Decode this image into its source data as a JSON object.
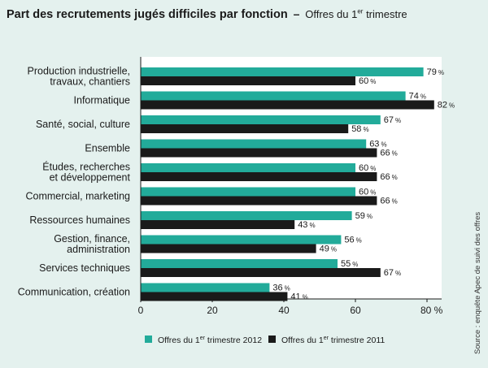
{
  "header": {
    "title": "Part des recrutements jugés difficiles par fonction",
    "dash": "–",
    "subtitle_prefix": "Offres du 1",
    "subtitle_sup": "er",
    "subtitle_suffix": " trimestre"
  },
  "source": "Source : enquête Apec de suivi des offres",
  "colors": {
    "series_2012": "#22ab9a",
    "series_2011": "#1a1a1a",
    "background": "#e4f1ee"
  },
  "chart_data": {
    "type": "bar",
    "orientation": "horizontal",
    "categories": [
      [
        "Production industrielle,",
        "travaux, chantiers"
      ],
      [
        "Informatique"
      ],
      [
        "Santé, social, culture"
      ],
      [
        "Ensemble"
      ],
      [
        "Études, recherches",
        "et développement"
      ],
      [
        "Commercial, marketing"
      ],
      [
        "Ressources humaines"
      ],
      [
        "Gestion, finance,",
        "administration"
      ],
      [
        "Services techniques"
      ],
      [
        "Communication, création"
      ]
    ],
    "series": [
      {
        "name": "Offres du 1er trimestre 2012",
        "legend_prefix": "Offres du 1",
        "legend_sup": "er",
        "legend_suffix": " trimestre 2012",
        "values": [
          79,
          74,
          67,
          63,
          60,
          60,
          59,
          56,
          55,
          36
        ]
      },
      {
        "name": "Offres du 1er trimestre 2011",
        "legend_prefix": "Offres du 1",
        "legend_sup": "er",
        "legend_suffix": " trimestre 2011",
        "values": [
          60,
          82,
          58,
          66,
          66,
          66,
          43,
          49,
          67,
          41
        ]
      }
    ],
    "value_suffix": "%",
    "xlim": [
      0,
      80
    ],
    "xticks": [
      "0",
      "20",
      "40",
      "60",
      "80 %"
    ],
    "xtick_values": [
      0,
      20,
      40,
      60,
      80
    ],
    "grid": false,
    "legend_position": "bottom"
  }
}
